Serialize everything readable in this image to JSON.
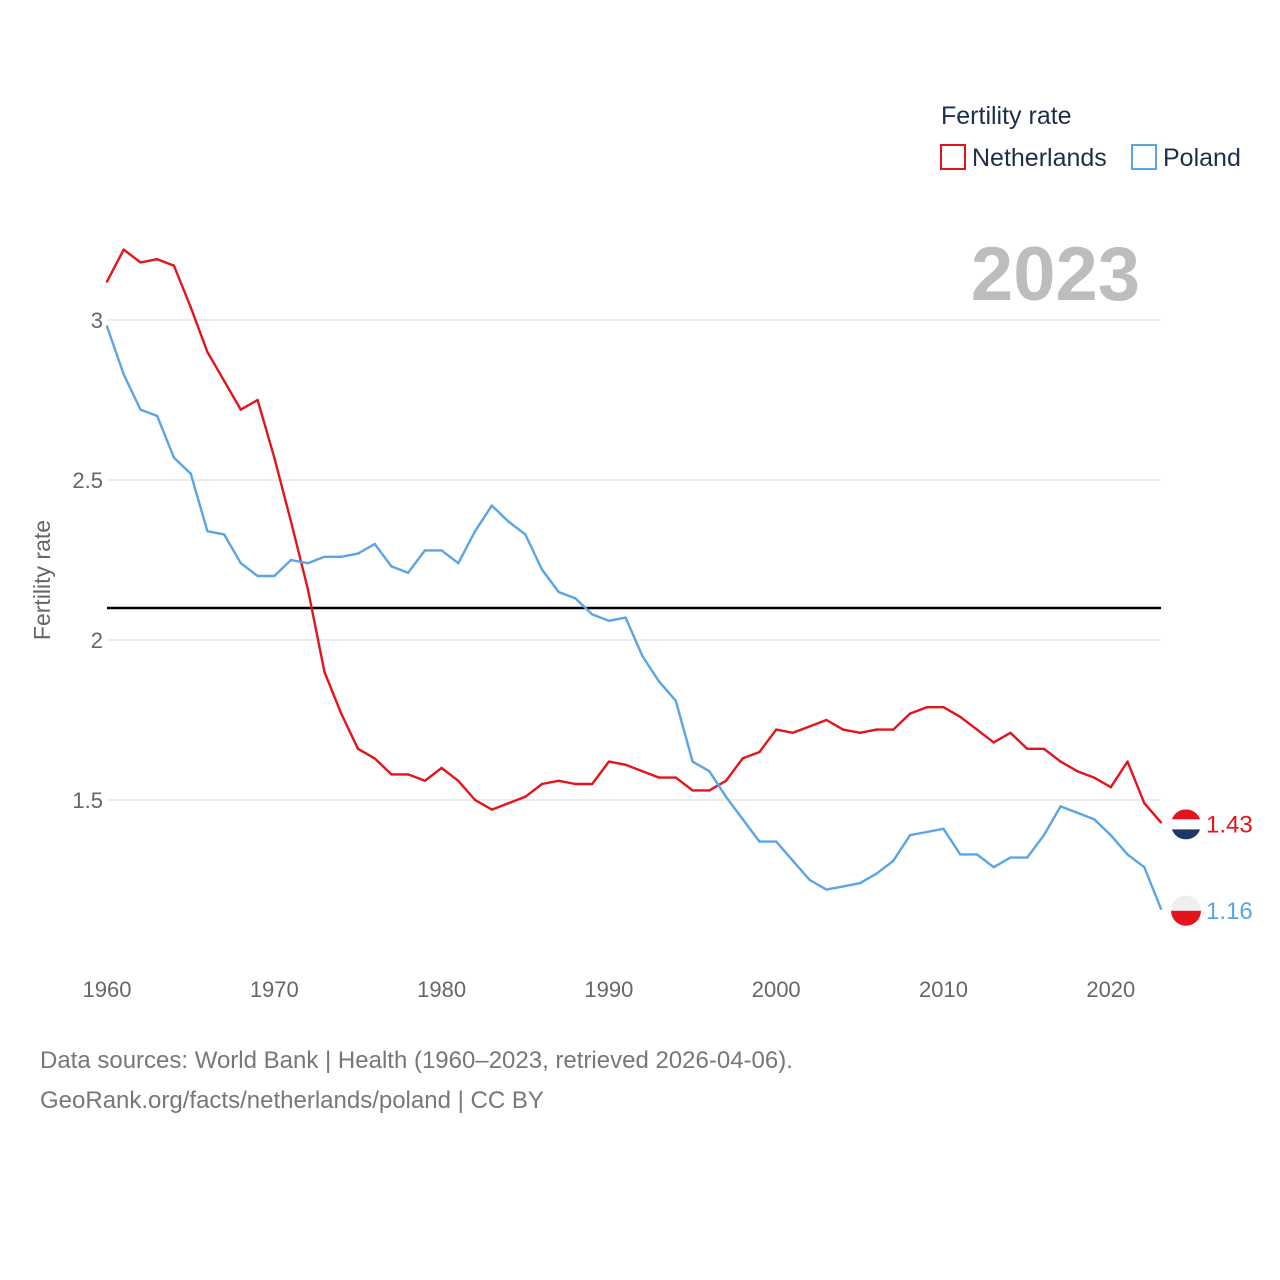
{
  "chart_data": {
    "type": "line",
    "title": "Fertility rate",
    "ylabel": "Fertility rate",
    "xlabel": "",
    "current_year_label": "2023",
    "xlim": [
      1960,
      2023
    ],
    "ylim": [
      1.0,
      3.25
    ],
    "x_ticks": [
      "1960",
      "1970",
      "1980",
      "1990",
      "2000",
      "2010",
      "2020"
    ],
    "y_ticks": [
      "3",
      "2.5",
      "2",
      "1.5"
    ],
    "reference_line": {
      "value": 2.1,
      "color": "#000000"
    },
    "legend": {
      "title": "Fertility rate",
      "placement": "top-right"
    },
    "series": [
      {
        "name": "Netherlands",
        "color": "#e3141b",
        "end_label": "1.43",
        "start_year": 1960,
        "values": [
          3.12,
          3.22,
          3.18,
          3.19,
          3.17,
          3.04,
          2.9,
          2.81,
          2.72,
          2.75,
          2.57,
          2.37,
          2.16,
          1.9,
          1.77,
          1.66,
          1.63,
          1.58,
          1.58,
          1.56,
          1.6,
          1.56,
          1.5,
          1.47,
          1.49,
          1.51,
          1.55,
          1.56,
          1.55,
          1.55,
          1.62,
          1.61,
          1.59,
          1.57,
          1.57,
          1.53,
          1.53,
          1.56,
          1.63,
          1.65,
          1.72,
          1.71,
          1.73,
          1.75,
          1.72,
          1.71,
          1.72,
          1.72,
          1.77,
          1.79,
          1.79,
          1.76,
          1.72,
          1.68,
          1.71,
          1.66,
          1.66,
          1.62,
          1.59,
          1.57,
          1.54,
          1.62,
          1.49,
          1.43
        ]
      },
      {
        "name": "Poland",
        "color": "#5aa5e6",
        "end_label": "1.16",
        "start_year": 1960,
        "values": [
          2.98,
          2.83,
          2.72,
          2.7,
          2.57,
          2.52,
          2.34,
          2.33,
          2.24,
          2.2,
          2.2,
          2.25,
          2.24,
          2.26,
          2.26,
          2.27,
          2.3,
          2.23,
          2.21,
          2.28,
          2.28,
          2.24,
          2.34,
          2.42,
          2.37,
          2.33,
          2.22,
          2.15,
          2.13,
          2.08,
          2.06,
          2.07,
          1.95,
          1.87,
          1.81,
          1.62,
          1.59,
          1.51,
          1.44,
          1.37,
          1.37,
          1.31,
          1.25,
          1.22,
          1.23,
          1.24,
          1.27,
          1.31,
          1.39,
          1.4,
          1.41,
          1.33,
          1.33,
          1.29,
          1.32,
          1.32,
          1.39,
          1.48,
          1.46,
          1.44,
          1.39,
          1.33,
          1.29,
          1.16
        ]
      }
    ]
  },
  "footer": {
    "line1": "Data sources: World Bank | Health (1960–2023, retrieved 2026-04-06).",
    "line2": "GeoRank.org/facts/netherlands/poland | CC BY"
  },
  "icons": [
    "netherlands-flag-icon",
    "poland-flag-icon"
  ]
}
